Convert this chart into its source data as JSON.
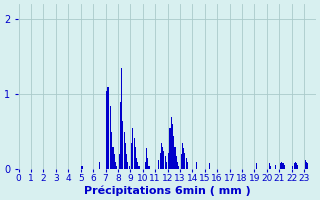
{
  "xlabel": "Précipitations 6min ( mm )",
  "xlabel_fontsize": 8,
  "background_color": "#d8f0f0",
  "bar_color": "#0000cc",
  "ylim": [
    0,
    2.2
  ],
  "yticks": [
    0,
    1,
    2
  ],
  "bar_width": 0.9,
  "grid_color": "#aacaca",
  "tick_color": "#0000cc",
  "tick_fontsize": 6.5,
  "n_bars": 240,
  "bars_per_hour": 10,
  "values": [
    0,
    0,
    0,
    0,
    0,
    0,
    0,
    0,
    0,
    0,
    0,
    0,
    0,
    0,
    0,
    0,
    0,
    0,
    0,
    0,
    0,
    0,
    0,
    0,
    0,
    0,
    0,
    0,
    0,
    0,
    0,
    0,
    0,
    0,
    0,
    0,
    0,
    0,
    0,
    0,
    0,
    0,
    0,
    0,
    0,
    0,
    0,
    0,
    0,
    0,
    0,
    0.05,
    0,
    0,
    0,
    0,
    0,
    0,
    0,
    0,
    0,
    0,
    0,
    0,
    0,
    0.1,
    0,
    0,
    0,
    0,
    0,
    1.05,
    1.1,
    0,
    0.85,
    0.5,
    0.3,
    0.2,
    0.1,
    0.05,
    0,
    0.2,
    0.9,
    1.35,
    0.65,
    0.5,
    0.35,
    0.2,
    0.1,
    0.05,
    0,
    0.35,
    0.55,
    0.42,
    0.3,
    0.15,
    0.1,
    0.05,
    0,
    0,
    0,
    0,
    0.1,
    0.28,
    0.15,
    0.05,
    0,
    0,
    0,
    0,
    0,
    0,
    0,
    0.12,
    0.22,
    0.35,
    0.3,
    0.25,
    0.18,
    0.1,
    0,
    0.22,
    0.55,
    0.7,
    0.6,
    0.45,
    0.3,
    0.18,
    0.1,
    0.05,
    0,
    0.2,
    0.35,
    0.28,
    0.22,
    0.15,
    0.1,
    0,
    0,
    0,
    0,
    0,
    0,
    0.1,
    0,
    0,
    0,
    0,
    0,
    0,
    0,
    0,
    0,
    0,
    0.08,
    0,
    0,
    0,
    0,
    0,
    0,
    0,
    0,
    0,
    0,
    0,
    0,
    0,
    0,
    0,
    0,
    0,
    0,
    0,
    0,
    0,
    0,
    0,
    0,
    0,
    0,
    0,
    0,
    0,
    0,
    0,
    0,
    0,
    0,
    0,
    0,
    0,
    0.08,
    0,
    0,
    0,
    0,
    0,
    0,
    0,
    0,
    0,
    0.08,
    0.05,
    0,
    0,
    0,
    0.06,
    0,
    0,
    0,
    0.08,
    0.1,
    0.08,
    0.06,
    0,
    0,
    0,
    0,
    0,
    0,
    0.05,
    0.08,
    0.1,
    0.08,
    0.06,
    0,
    0,
    0,
    0,
    0,
    0.12,
    0.1,
    0.08,
    0,
    0,
    0,
    0,
    0,
    0
  ]
}
